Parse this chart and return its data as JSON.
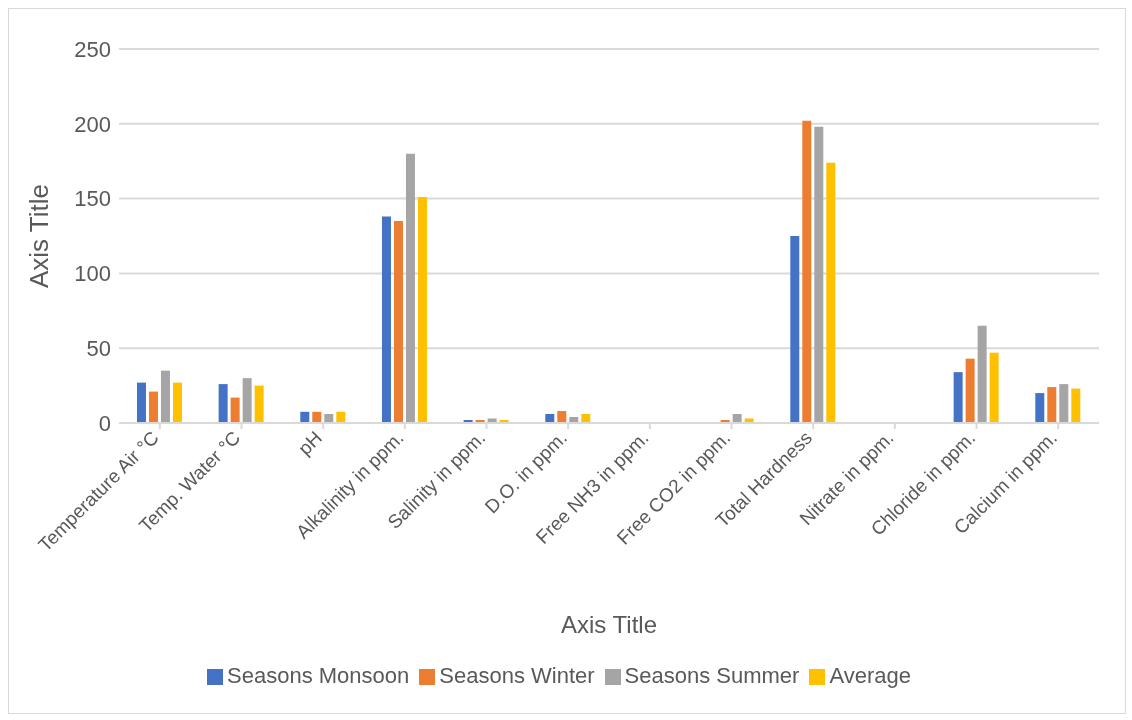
{
  "chart_data": {
    "type": "bar",
    "xlabel": "Axis Title",
    "ylabel": "Axis Title",
    "categories": [
      "Temperature Air °C",
      "Temp. Water °C",
      "pH",
      "Alkalinity in ppm.",
      "Salinity in ppm.",
      "D.O. in ppm.",
      "Free NH3 in ppm.",
      "Free CO2 in ppm.",
      "Total Hardness",
      "Nitrate in ppm.",
      "Chloride in ppm.",
      "Calcium in ppm."
    ],
    "series": [
      {
        "name": "Seasons Monsoon",
        "color": "#4472c4",
        "values": [
          27,
          26,
          7.5,
          138,
          2,
          6,
          0,
          0,
          125,
          0,
          34,
          20
        ]
      },
      {
        "name": "Seasons Winter",
        "color": "#ed7d31",
        "values": [
          21,
          17,
          7.5,
          135,
          2,
          8,
          0,
          2,
          202,
          0,
          43,
          24
        ]
      },
      {
        "name": "Seasons Summer",
        "color": "#a5a5a5",
        "values": [
          35,
          30,
          6,
          180,
          3,
          4,
          0,
          6,
          198,
          0,
          65,
          26
        ]
      },
      {
        "name": "Average",
        "color": "#ffc000",
        "values": [
          27,
          25,
          7.5,
          151,
          2,
          6,
          0,
          3,
          174,
          0,
          47,
          23
        ]
      }
    ],
    "ylim": [
      0,
      250
    ],
    "yticks": [
      0,
      50,
      100,
      150,
      200,
      250
    ],
    "grid": "y",
    "legend": "bottom"
  }
}
